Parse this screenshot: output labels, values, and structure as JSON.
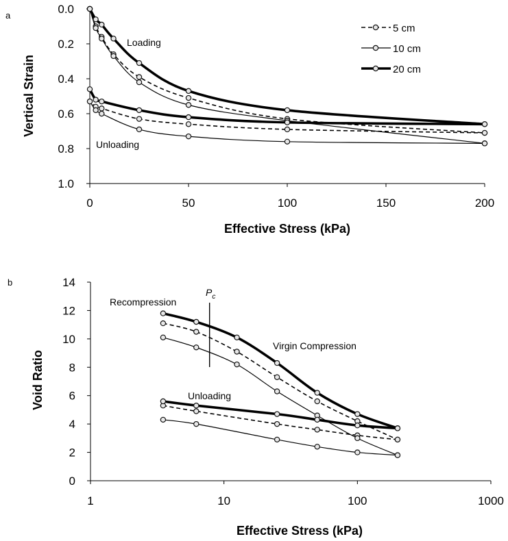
{
  "chart_data": [
    {
      "panel": "a",
      "type": "line",
      "xlabel": "Effective Stress (kPa)",
      "ylabel": "Vertical Strain",
      "xlim": [
        0,
        200
      ],
      "ylim": [
        0.0,
        1.0
      ],
      "y_inverted": true,
      "x_ticks": [
        "0",
        "50",
        "100",
        "150",
        "200"
      ],
      "y_ticks": [
        "0.0",
        "0.2",
        "0.4",
        "0.6",
        "0.8",
        "1.0"
      ],
      "legend": {
        "position": "top-right",
        "entries": [
          "5 cm",
          "10 cm",
          "20 cm"
        ]
      },
      "annotations": [
        "Loading",
        "Unloading"
      ],
      "series": [
        {
          "name": "5 cm",
          "line_style": "dashed",
          "loading": {
            "x": [
              0,
              3,
              6,
              12,
              25,
              50,
              100,
              200
            ],
            "y": [
              0.0,
              0.1,
              0.16,
              0.26,
              0.39,
              0.51,
              0.63,
              0.71
            ]
          },
          "unloading": {
            "x": [
              200,
              100,
              50,
              25,
              6,
              3,
              0
            ],
            "y": [
              0.71,
              0.69,
              0.66,
              0.63,
              0.57,
              0.56,
              0.53
            ]
          }
        },
        {
          "name": "10 cm",
          "line_style": "solid-thin",
          "loading": {
            "x": [
              0,
              3,
              6,
              12,
              25,
              50,
              100,
              200
            ],
            "y": [
              0.0,
              0.11,
              0.17,
              0.27,
              0.42,
              0.55,
              0.64,
              0.77
            ]
          },
          "unloading": {
            "x": [
              200,
              100,
              50,
              25,
              6,
              3,
              0
            ],
            "y": [
              0.77,
              0.76,
              0.73,
              0.69,
              0.6,
              0.58,
              0.53
            ]
          }
        },
        {
          "name": "20 cm",
          "line_style": "solid-thick",
          "loading": {
            "x": [
              0,
              3,
              6,
              12,
              25,
              50,
              100,
              200
            ],
            "y": [
              0.0,
              0.06,
              0.09,
              0.17,
              0.31,
              0.47,
              0.58,
              0.66
            ]
          },
          "unloading": {
            "x": [
              200,
              100,
              50,
              25,
              6,
              3,
              0
            ],
            "y": [
              0.66,
              0.65,
              0.62,
              0.58,
              0.53,
              0.52,
              0.46
            ]
          }
        }
      ]
    },
    {
      "panel": "b",
      "type": "line",
      "xlabel": "Effective Stress (kPa)",
      "ylabel": "Void Ratio",
      "xscale": "log",
      "xlim": [
        1,
        1000
      ],
      "ylim": [
        0,
        14
      ],
      "x_ticks": [
        "1",
        "10",
        "100",
        "1000"
      ],
      "y_ticks": [
        "0",
        "2",
        "4",
        "6",
        "8",
        "10",
        "12",
        "14"
      ],
      "pc_value": 7.8,
      "annotations": [
        "Recompression",
        "Virgin Compression",
        "Unloading"
      ],
      "pc_label": "P",
      "pc_subscript": "c",
      "series": [
        {
          "name": "5 cm",
          "line_style": "dashed",
          "loading": {
            "x": [
              3.5,
              6.2,
              12.5,
              25,
              50,
              100,
              200
            ],
            "y": [
              11.1,
              10.5,
              9.1,
              7.3,
              5.6,
              4.2,
              2.9
            ]
          },
          "unloading": {
            "x": [
              200,
              100,
              50,
              25,
              6.2,
              3.5
            ],
            "y": [
              2.9,
              3.2,
              3.6,
              4.0,
              4.9,
              5.3
            ]
          }
        },
        {
          "name": "10 cm",
          "line_style": "solid-thin",
          "loading": {
            "x": [
              3.5,
              6.2,
              12.5,
              25,
              50,
              100,
              200
            ],
            "y": [
              10.1,
              9.4,
              8.2,
              6.3,
              4.6,
              3.0,
              1.8
            ]
          },
          "unloading": {
            "x": [
              200,
              100,
              50,
              25,
              6.2,
              3.5
            ],
            "y": [
              1.8,
              2.0,
              2.4,
              2.9,
              4.0,
              4.3
            ]
          }
        },
        {
          "name": "20 cm",
          "line_style": "solid-thick",
          "loading": {
            "x": [
              3.5,
              6.2,
              12.5,
              25,
              50,
              100,
              200
            ],
            "y": [
              11.8,
              11.2,
              10.1,
              8.3,
              6.2,
              4.7,
              3.7
            ]
          },
          "unloading": {
            "x": [
              200,
              100,
              50,
              25,
              6.2,
              3.5
            ],
            "y": [
              3.7,
              3.9,
              4.3,
              4.7,
              5.3,
              5.6
            ]
          }
        }
      ]
    }
  ]
}
